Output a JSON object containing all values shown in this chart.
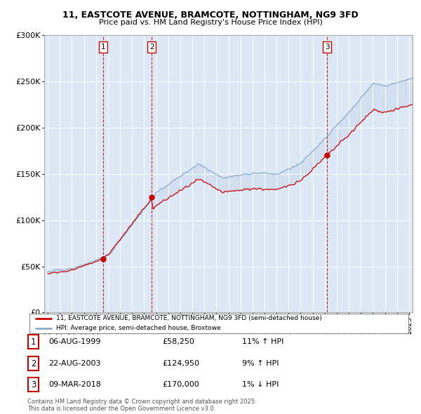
{
  "title1": "11, EASTCOTE AVENUE, BRAMCOTE, NOTTINGHAM, NG9 3FD",
  "title2": "Price paid vs. HM Land Registry's House Price Index (HPI)",
  "background_color": "#ffffff",
  "plot_bg": "#dce8f5",
  "legend_line1": "11, EASTCOTE AVENUE, BRAMCOTE, NOTTINGHAM, NG9 3FD (semi-detached house)",
  "legend_line2": "HPI: Average price, semi-detached house, Broxtowe",
  "sales": [
    {
      "num": 1,
      "date": "06-AUG-1999",
      "price": 58250,
      "pct": "11%",
      "dir": "↑",
      "x": 1999.6
    },
    {
      "num": 2,
      "date": "22-AUG-2003",
      "price": 124950,
      "pct": "9%",
      "dir": "↑",
      "x": 2003.64
    },
    {
      "num": 3,
      "date": "09-MAR-2018",
      "price": 170000,
      "pct": "1%",
      "dir": "↓",
      "x": 2018.19
    }
  ],
  "footer": "Contains HM Land Registry data © Crown copyright and database right 2025.\nThis data is licensed under the Open Government Licence v3.0.",
  "dashed_line_color": "#cc0000",
  "sale_dot_color": "#cc0000",
  "hpi_color": "#aabbdd",
  "hpi_line_color": "#88aacc",
  "price_color": "#cc0000",
  "ylim": [
    0,
    300000
  ],
  "yticks": [
    0,
    50000,
    100000,
    150000,
    200000,
    250000,
    300000
  ],
  "ytick_labels": [
    "£0",
    "£50K",
    "£100K",
    "£150K",
    "£200K",
    "£250K",
    "£300K"
  ],
  "xmin": 1995,
  "xmax": 2025
}
